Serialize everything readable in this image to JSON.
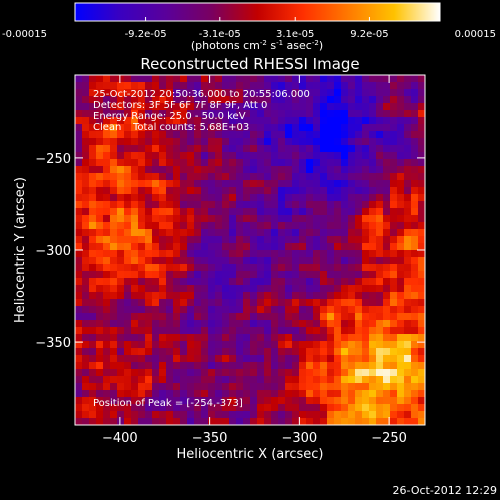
{
  "colorbar": {
    "tick_labels": [
      "-0.00015",
      "-9.2e-05",
      "-3.1e-05",
      "3.1e-05",
      "9.2e-05",
      "0.00015"
    ],
    "tick_values": [
      -0.00015,
      -9.2e-05,
      -3.1e-05,
      3.1e-05,
      9.2e-05,
      0.00015
    ],
    "range": [
      -0.00015,
      0.00015
    ],
    "unit_parts": [
      "(photons cm",
      "-2",
      " s",
      "-1",
      " asec",
      "-2",
      ")"
    ],
    "colors": [
      "#0000ff",
      "#3a00c0",
      "#5a009a",
      "#7a0060",
      "#c20000",
      "#ff3000",
      "#ff7a00",
      "#ffc200",
      "#ffffff"
    ]
  },
  "chart_data": {
    "type": "heatmap",
    "title": "Reconstructed RHESSI Image",
    "xlabel": "Heliocentric X (arcsec)",
    "ylabel": "Heliocentric Y (arcsec)",
    "xlim": [
      -425,
      -230
    ],
    "ylim": [
      -395,
      -205
    ],
    "x_ticks": [
      -400,
      -350,
      -300,
      -250
    ],
    "y_ticks": [
      -250,
      -300,
      -350
    ],
    "x_tick_labels": [
      "−400",
      "−350",
      "−300",
      "−250"
    ],
    "y_tick_labels": [
      "−250",
      "−300",
      "−350"
    ],
    "annotations": {
      "time": "25-Oct-2012 20:50:36.000 to 20:55:06.000",
      "detectors": "Detectors: 3F 5F 6F 7F 8F 9F, Att 0",
      "energy": "Energy Range: 25.0 - 50.0 keV",
      "clean": "Clean",
      "total_counts": "Total counts: 5.68E+03",
      "peak": "Position of Peak = [-254,-373]"
    },
    "peak_position": [
      -254,
      -373
    ],
    "footer_date": "26-Oct-2012 12:29"
  }
}
